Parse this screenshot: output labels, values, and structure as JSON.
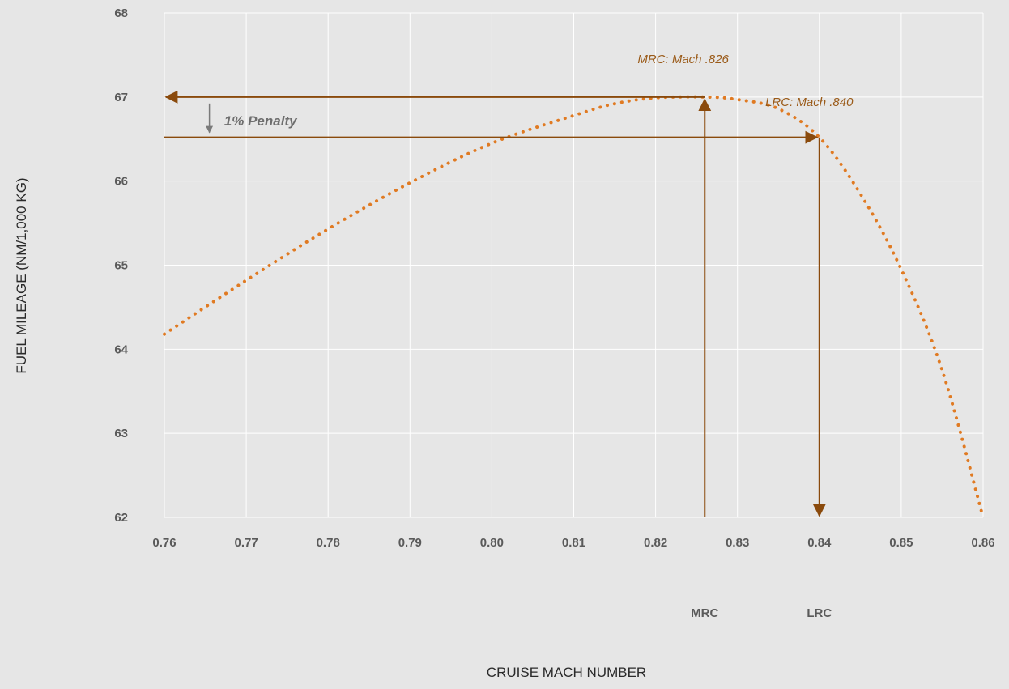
{
  "colors": {
    "background": "#e6e6e6",
    "grid": "#ffffff",
    "curve": "#e07a22",
    "arrow": "#8a4a0c",
    "penalty_arrow": "#7a7a7a",
    "annotation": "#9a5a18",
    "tick_text": "#5a5a5a"
  },
  "chart_data": {
    "type": "line",
    "title": "",
    "xlabel": "CRUISE MACH NUMBER",
    "ylabel": "FUEL MILEAGE (NM/1,000 KG)",
    "xlim": [
      0.76,
      0.86
    ],
    "ylim": [
      62,
      68
    ],
    "grid": true,
    "x_ticks": [
      "0.76",
      "0.77",
      "0.78",
      "0.79",
      "0.80",
      "0.81",
      "0.82",
      "0.83",
      "0.84",
      "0.85",
      "0.86"
    ],
    "y_ticks": [
      "62",
      "63",
      "64",
      "65",
      "66",
      "67",
      "68"
    ],
    "series": [
      {
        "line_style": "dotted",
        "x": [
          0.76,
          0.77,
          0.78,
          0.79,
          0.8,
          0.81,
          0.815,
          0.82,
          0.826,
          0.83,
          0.835,
          0.84,
          0.845,
          0.85,
          0.855,
          0.86
        ],
        "y": [
          64.18,
          64.82,
          65.43,
          65.98,
          66.45,
          66.78,
          66.92,
          66.99,
          67.0,
          66.97,
          66.86,
          66.52,
          65.85,
          64.95,
          63.75,
          62.0
        ]
      }
    ],
    "markers": [
      {
        "label": "MRC",
        "mach": 0.826,
        "fuel_mileage": 67.0,
        "annotation": "MRC: Mach .826"
      },
      {
        "label": "LRC",
        "mach": 0.84,
        "fuel_mileage": 66.52,
        "annotation": "LRC: Mach .840"
      }
    ],
    "penalty": {
      "label": "1% Penalty",
      "from": 67.0,
      "to": 66.52
    }
  }
}
